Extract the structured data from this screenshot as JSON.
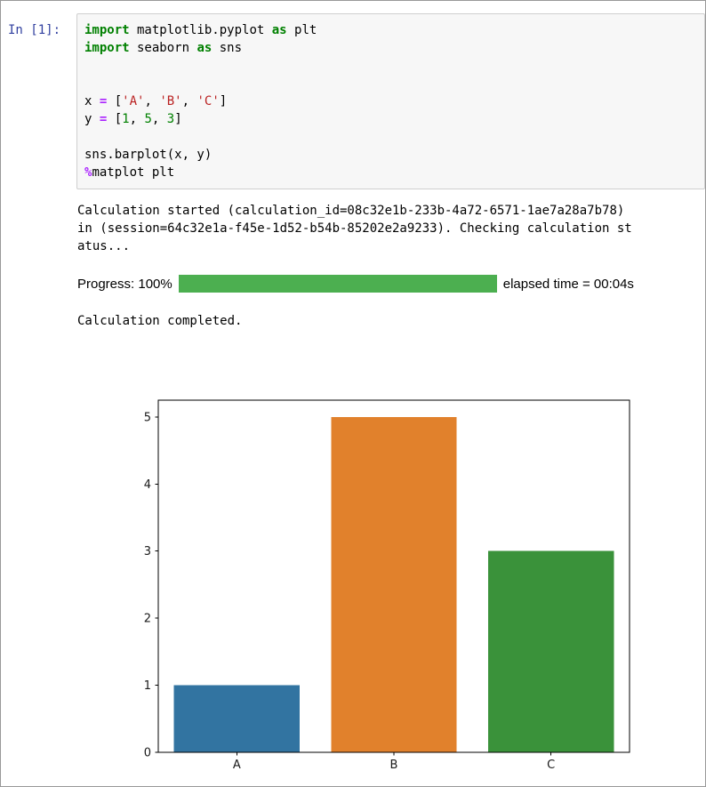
{
  "page": {
    "bg": "#ffffff",
    "border_color": "#999999"
  },
  "cell": {
    "prompt": "In [1]:",
    "prompt_color": "#303F9F",
    "code_bg": "#f7f7f7",
    "code_border": "#cfcfcf",
    "token_colors": {
      "kw": "#008000",
      "str": "#BA2121",
      "num": "#008000",
      "op": "#AA22FF",
      "plain": "#000000"
    },
    "code_lines": [
      [
        {
          "c": "kw",
          "t": "import"
        },
        {
          "c": "plain",
          "t": " matplotlib.pyplot "
        },
        {
          "c": "kw",
          "t": "as"
        },
        {
          "c": "plain",
          "t": " plt"
        }
      ],
      [
        {
          "c": "kw",
          "t": "import"
        },
        {
          "c": "plain",
          "t": " seaborn "
        },
        {
          "c": "kw",
          "t": "as"
        },
        {
          "c": "plain",
          "t": " sns"
        }
      ],
      [],
      [],
      [
        {
          "c": "plain",
          "t": "x "
        },
        {
          "c": "op",
          "t": "="
        },
        {
          "c": "plain",
          "t": " ["
        },
        {
          "c": "str",
          "t": "'A'"
        },
        {
          "c": "plain",
          "t": ", "
        },
        {
          "c": "str",
          "t": "'B'"
        },
        {
          "c": "plain",
          "t": ", "
        },
        {
          "c": "str",
          "t": "'C'"
        },
        {
          "c": "plain",
          "t": "]"
        }
      ],
      [
        {
          "c": "plain",
          "t": "y "
        },
        {
          "c": "op",
          "t": "="
        },
        {
          "c": "plain",
          "t": " ["
        },
        {
          "c": "num",
          "t": "1"
        },
        {
          "c": "plain",
          "t": ", "
        },
        {
          "c": "num",
          "t": "5"
        },
        {
          "c": "plain",
          "t": ", "
        },
        {
          "c": "num",
          "t": "3"
        },
        {
          "c": "plain",
          "t": "]"
        }
      ],
      [],
      [
        {
          "c": "plain",
          "t": "sns.barplot(x, y)"
        }
      ],
      [
        {
          "c": "op",
          "t": "%"
        },
        {
          "c": "plain",
          "t": "matplot plt"
        }
      ]
    ]
  },
  "output": {
    "stream_lines": [
      "Calculation started (calculation_id=08c32e1b-233b-4a72-6571-1ae7a28a7b78)",
      "in (session=64c32e1a-f45e-1d52-b54b-85202e2a9233). Checking calculation st",
      "atus..."
    ],
    "progress": {
      "label": "Progress: 100%",
      "percent": 100,
      "bar_color": "#4CAF50",
      "elapsed": "elapsed time = 00:04s"
    },
    "completed": "Calculation completed."
  },
  "chart_data": {
    "type": "bar",
    "categories": [
      "A",
      "B",
      "C"
    ],
    "values": [
      1,
      5,
      3
    ],
    "bar_colors": [
      "#3274a1",
      "#e1812c",
      "#3a923a"
    ],
    "title": "",
    "xlabel": "",
    "ylabel": "",
    "ylim": [
      0,
      5.25
    ],
    "yticks": [
      0,
      1,
      2,
      3,
      4,
      5
    ],
    "grid": false,
    "legend": false,
    "axis_color": "#000000",
    "bar_width_fraction": 0.8
  }
}
